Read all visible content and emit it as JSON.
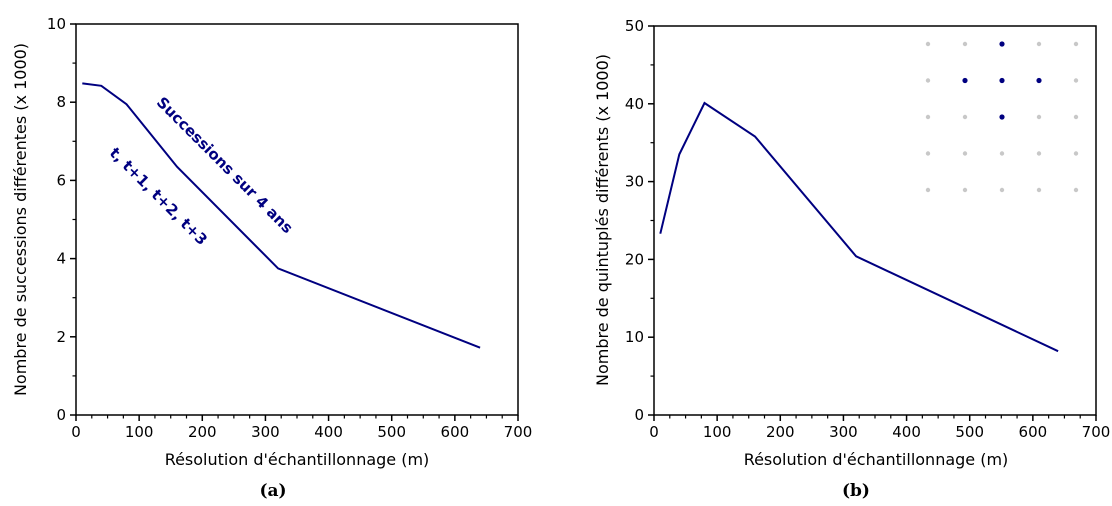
{
  "chart_data": [
    {
      "type": "line",
      "caption": "(a)",
      "xlabel": "Résolution d'échantillonnage (m)",
      "ylabel": "Nombre de successions différentes (x 1000)",
      "xlim": [
        0,
        700
      ],
      "ylim": [
        0,
        10
      ],
      "xticks": [
        "0",
        "100",
        "200",
        "300",
        "400",
        "500",
        "600",
        "700"
      ],
      "yticks": [
        "0",
        "2",
        "4",
        "6",
        "8",
        "10"
      ],
      "line_color": "#000080",
      "series": [
        {
          "x": [
            10,
            40,
            80,
            160,
            320,
            640
          ],
          "y": [
            8.48,
            8.42,
            7.95,
            6.35,
            3.75,
            1.72
          ]
        }
      ],
      "annotations": [
        {
          "text": "Successions sur 4 ans",
          "x": 230,
          "y": 6.3,
          "angle": 45
        },
        {
          "text": "t, t+1, t+2, t+3",
          "x": 125,
          "y": 5.5,
          "angle": 45
        }
      ]
    },
    {
      "type": "line",
      "caption": "(b)",
      "xlabel": "Résolution d'échantillonnage (m)",
      "ylabel": "Nombre de quintuplés différents (x 1000)",
      "xlim": [
        0,
        700
      ],
      "ylim": [
        0,
        50
      ],
      "xticks": [
        "0",
        "100",
        "200",
        "300",
        "400",
        "500",
        "600",
        "700"
      ],
      "yticks": [
        "0",
        "10",
        "20",
        "30",
        "40",
        "50"
      ],
      "line_color": "#000080",
      "series": [
        {
          "x": [
            10,
            40,
            80,
            160,
            320,
            640
          ],
          "y": [
            23.3,
            33.5,
            40.1,
            35.8,
            20.4,
            8.2
          ]
        }
      ],
      "inset_grid": {
        "rows": 5,
        "cols": 5,
        "highlighted": [
          [
            0,
            2
          ],
          [
            1,
            1
          ],
          [
            1,
            2
          ],
          [
            1,
            3
          ],
          [
            2,
            2
          ]
        ],
        "dot_color": "#c8c8c8",
        "highlight_color": "#000080"
      }
    }
  ]
}
